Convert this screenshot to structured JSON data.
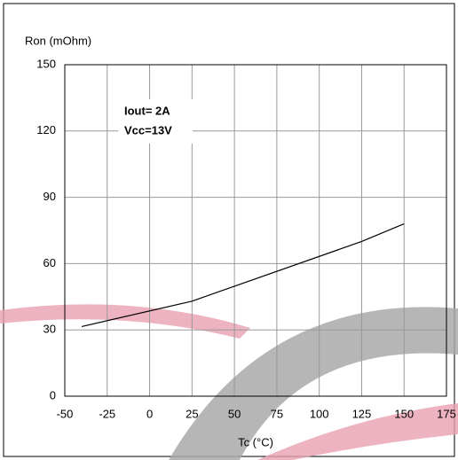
{
  "chart_data": {
    "type": "line",
    "y_label": "Ron (mOhm)",
    "x_label": "Tc (°C)",
    "annotations": [
      "Iout= 2A",
      "Vcc=13V"
    ],
    "x": [
      -40,
      25,
      125,
      150
    ],
    "series": [
      {
        "name": "Ron",
        "color": "#000000",
        "values": [
          31.5,
          43,
          70,
          78
        ]
      }
    ],
    "xlim": [
      -50,
      175
    ],
    "xticks": [
      -50,
      -25,
      0,
      25,
      50,
      75,
      100,
      125,
      150,
      175
    ],
    "ylim": [
      0,
      150
    ],
    "yticks": [
      0,
      30,
      60,
      90,
      120,
      150
    ],
    "grid": true
  }
}
